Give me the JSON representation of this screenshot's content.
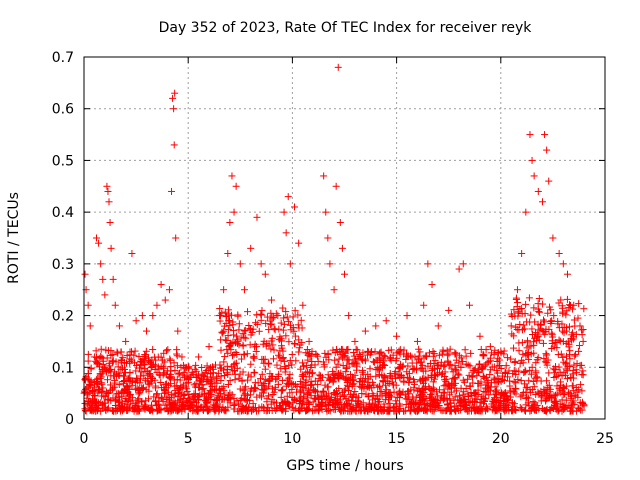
{
  "chart_data": {
    "type": "scatter",
    "title": "Day 352 of 2023, Rate Of TEC Index for receiver reyk",
    "xlabel": "GPS time / hours",
    "ylabel": "ROTI / TECUs",
    "xlim": [
      0,
      25
    ],
    "ylim": [
      0,
      0.7
    ],
    "xticks": [
      0,
      5,
      10,
      15,
      20,
      25
    ],
    "xtick_labels": [
      "0",
      "5",
      "10",
      "15",
      "20",
      "25"
    ],
    "yticks": [
      0,
      0.1,
      0.2,
      0.3,
      0.4,
      0.5,
      0.6,
      0.7
    ],
    "ytick_labels": [
      "0",
      "0.1",
      "0.2",
      "0.3",
      "0.4",
      "0.5",
      "0.6",
      "0.7"
    ],
    "grid": true,
    "marker": "+",
    "color": "#ff0000",
    "series": [
      {
        "name": "ROTI",
        "points": [
          [
            0.05,
            0.28
          ],
          [
            0.1,
            0.25
          ],
          [
            0.2,
            0.22
          ],
          [
            0.3,
            0.18
          ],
          [
            0.5,
            0.12
          ],
          [
            0.6,
            0.35
          ],
          [
            0.7,
            0.34
          ],
          [
            0.8,
            0.3
          ],
          [
            0.9,
            0.27
          ],
          [
            1.0,
            0.24
          ],
          [
            1.1,
            0.45
          ],
          [
            1.15,
            0.44
          ],
          [
            1.2,
            0.42
          ],
          [
            1.25,
            0.38
          ],
          [
            1.3,
            0.33
          ],
          [
            1.4,
            0.27
          ],
          [
            1.5,
            0.22
          ],
          [
            1.7,
            0.18
          ],
          [
            2.0,
            0.15
          ],
          [
            2.3,
            0.32
          ],
          [
            2.5,
            0.19
          ],
          [
            2.8,
            0.2
          ],
          [
            3.0,
            0.17
          ],
          [
            3.3,
            0.2
          ],
          [
            3.5,
            0.22
          ],
          [
            3.7,
            0.26
          ],
          [
            3.9,
            0.23
          ],
          [
            4.1,
            0.25
          ],
          [
            4.2,
            0.44
          ],
          [
            4.25,
            0.62
          ],
          [
            4.3,
            0.6
          ],
          [
            4.33,
            0.53
          ],
          [
            4.35,
            0.63
          ],
          [
            4.4,
            0.35
          ],
          [
            4.5,
            0.17
          ],
          [
            4.7,
            0.12
          ],
          [
            5.0,
            0.1
          ],
          [
            5.5,
            0.12
          ],
          [
            6.0,
            0.14
          ],
          [
            6.5,
            0.2
          ],
          [
            6.7,
            0.25
          ],
          [
            6.9,
            0.32
          ],
          [
            7.0,
            0.38
          ],
          [
            7.1,
            0.47
          ],
          [
            7.2,
            0.4
          ],
          [
            7.3,
            0.45
          ],
          [
            7.5,
            0.3
          ],
          [
            7.7,
            0.25
          ],
          [
            8.0,
            0.33
          ],
          [
            8.3,
            0.39
          ],
          [
            8.5,
            0.3
          ],
          [
            8.7,
            0.28
          ],
          [
            9.0,
            0.23
          ],
          [
            9.3,
            0.2
          ],
          [
            9.6,
            0.4
          ],
          [
            9.7,
            0.36
          ],
          [
            9.8,
            0.43
          ],
          [
            9.9,
            0.3
          ],
          [
            10.1,
            0.41
          ],
          [
            10.3,
            0.34
          ],
          [
            10.5,
            0.22
          ],
          [
            10.8,
            0.15
          ],
          [
            11.5,
            0.47
          ],
          [
            11.6,
            0.4
          ],
          [
            11.7,
            0.35
          ],
          [
            11.8,
            0.3
          ],
          [
            12.0,
            0.25
          ],
          [
            12.1,
            0.45
          ],
          [
            12.2,
            0.68
          ],
          [
            12.3,
            0.38
          ],
          [
            12.4,
            0.33
          ],
          [
            12.5,
            0.28
          ],
          [
            12.7,
            0.2
          ],
          [
            13.0,
            0.15
          ],
          [
            13.5,
            0.17
          ],
          [
            14.0,
            0.18
          ],
          [
            14.5,
            0.19
          ],
          [
            15.0,
            0.16
          ],
          [
            15.5,
            0.2
          ],
          [
            16.0,
            0.15
          ],
          [
            16.3,
            0.22
          ],
          [
            16.5,
            0.3
          ],
          [
            16.7,
            0.26
          ],
          [
            17.0,
            0.18
          ],
          [
            17.5,
            0.21
          ],
          [
            18.0,
            0.29
          ],
          [
            18.2,
            0.3
          ],
          [
            18.5,
            0.22
          ],
          [
            19.0,
            0.16
          ],
          [
            19.5,
            0.14
          ],
          [
            20.0,
            0.13
          ],
          [
            20.5,
            0.18
          ],
          [
            20.8,
            0.25
          ],
          [
            21.0,
            0.32
          ],
          [
            21.2,
            0.4
          ],
          [
            21.4,
            0.55
          ],
          [
            21.5,
            0.5
          ],
          [
            21.6,
            0.47
          ],
          [
            21.8,
            0.44
          ],
          [
            22.0,
            0.42
          ],
          [
            22.1,
            0.55
          ],
          [
            22.2,
            0.52
          ],
          [
            22.3,
            0.46
          ],
          [
            22.5,
            0.35
          ],
          [
            22.8,
            0.32
          ],
          [
            23.0,
            0.3
          ],
          [
            23.2,
            0.28
          ],
          [
            23.5,
            0.22
          ],
          [
            23.8,
            0.18
          ],
          [
            23.95,
            0.15
          ]
        ]
      }
    ],
    "dense_band_note": "dense base of points between ~0.02 and ~0.15 across 0-24 h"
  }
}
